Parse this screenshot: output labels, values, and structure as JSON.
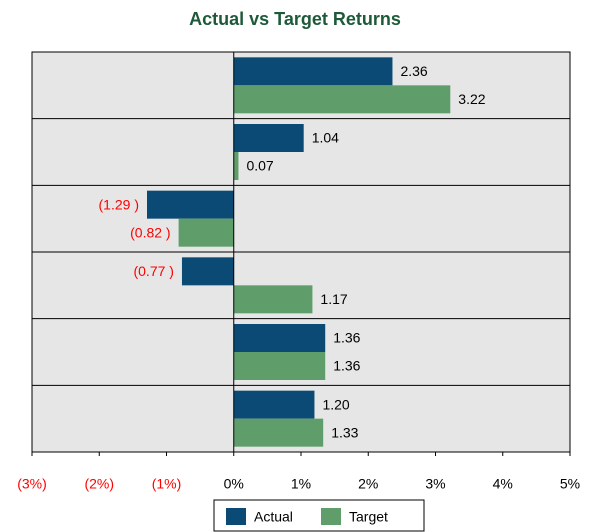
{
  "chart_data": {
    "type": "hbar",
    "title": "Actual vs Target Returns",
    "categories": [
      null,
      null,
      null,
      null,
      null,
      null
    ],
    "series": [
      {
        "name": "Actual",
        "color": "#0b4a74",
        "values": [
          2.36,
          1.04,
          -1.29,
          -0.77,
          1.36,
          1.2
        ],
        "value_labels": [
          "2.36",
          "1.04",
          "(1.29 )",
          "(0.77 )",
          "1.36",
          "1.20"
        ]
      },
      {
        "name": "Target",
        "color": "#5f9e6a",
        "values": [
          3.22,
          0.07,
          -0.82,
          1.17,
          1.36,
          1.33
        ],
        "value_labels": [
          "3.22",
          "0.07",
          "(0.82 )",
          "1.17",
          "1.36",
          "1.33"
        ]
      }
    ],
    "xlim": [
      -3,
      5
    ],
    "xticks": [
      {
        "value": -3,
        "label": "(3%)"
      },
      {
        "value": -2,
        "label": "(2%)"
      },
      {
        "value": -1,
        "label": "(1%)"
      },
      {
        "value": 0,
        "label": "0%"
      },
      {
        "value": 1,
        "label": "1%"
      },
      {
        "value": 2,
        "label": "2%"
      },
      {
        "value": 3,
        "label": "3%"
      },
      {
        "value": 4,
        "label": "4%"
      },
      {
        "value": 5,
        "label": "5%"
      }
    ],
    "negative_label_color": "#ff0000",
    "legend": "bottom"
  }
}
